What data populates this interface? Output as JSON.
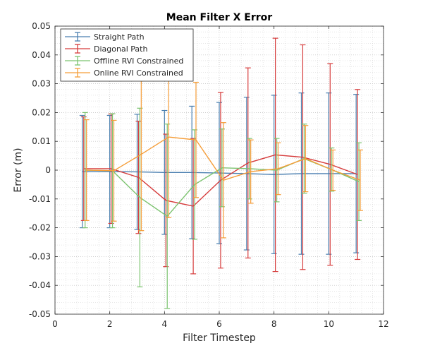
{
  "chart_data": {
    "type": "line",
    "title": "Mean Filter X Error",
    "xlabel": "Filter Timestep",
    "ylabel": "Error (m)",
    "xlim": [
      0,
      12
    ],
    "ylim": [
      -0.05,
      0.05
    ],
    "xticks": [
      0,
      2,
      4,
      6,
      8,
      10,
      12
    ],
    "xtick_labels": [
      "0",
      "2",
      "4",
      "6",
      "8",
      "10",
      "12"
    ],
    "yticks": [
      -0.05,
      -0.04,
      -0.03,
      -0.02,
      -0.01,
      0,
      0.01,
      0.02,
      0.03,
      0.04,
      0.05
    ],
    "ytick_labels": [
      "-0.05",
      "-0.04",
      "-0.03",
      "-0.02",
      "-0.01",
      "0",
      "0.01",
      "0.02",
      "0.03",
      "0.04",
      "0.05"
    ],
    "grid": "major and minor, dotted",
    "legend_position": "top-left",
    "series": [
      {
        "name": "Straight Path",
        "color": "#4a7fb0",
        "x": [
          1,
          2,
          3,
          4,
          5,
          6,
          7,
          8,
          9,
          10,
          11
        ],
        "y": [
          -0.0005,
          -0.0005,
          -0.0006,
          -0.0008,
          -0.0008,
          -0.001,
          -0.0012,
          -0.0015,
          -0.0012,
          -0.0012,
          -0.0012
        ],
        "err": [
          0.0195,
          0.0195,
          0.02,
          0.0215,
          0.023,
          0.0245,
          0.0265,
          0.0275,
          0.028,
          0.028,
          0.0275
        ]
      },
      {
        "name": "Diagonal Path",
        "color": "#d63c3c",
        "x": [
          1.05,
          2.05,
          3.05,
          4.05,
          5.05,
          6.05,
          7.05,
          8.05,
          9.05,
          10.05,
          11.05
        ],
        "y": [
          0.0005,
          0.0005,
          -0.0025,
          -0.0105,
          -0.0125,
          -0.0035,
          0.0025,
          0.0053,
          0.0045,
          0.002,
          -0.0015
        ],
        "err": [
          0.018,
          0.019,
          0.0195,
          0.023,
          0.0235,
          0.0305,
          0.033,
          0.0405,
          0.039,
          0.035,
          0.0295
        ]
      },
      {
        "name": "Offline RVI Constrained",
        "color": "#7cc36f",
        "x": [
          1.1,
          2.1,
          3.1,
          4.1,
          5.1,
          6.1,
          7.1,
          8.1,
          9.1,
          10.1,
          11.1
        ],
        "y": [
          0.0,
          -0.0002,
          -0.0095,
          -0.016,
          -0.005,
          0.0008,
          0.0005,
          0.0,
          0.004,
          0.0002,
          -0.004
        ],
        "err": [
          0.02,
          0.0198,
          0.031,
          0.032,
          0.019,
          0.0135,
          0.0105,
          0.011,
          0.012,
          0.0075,
          0.0135
        ]
      },
      {
        "name": "Online RVI Constrained",
        "color": "#f59d38",
        "x": [
          1.15,
          2.15,
          3.15,
          4.15,
          5.15,
          6.15,
          7.15,
          8.15,
          9.15,
          10.15,
          11.15
        ],
        "y": [
          0.0,
          -0.0002,
          0.0055,
          0.0115,
          0.0105,
          -0.0035,
          -0.0005,
          0.0005,
          0.004,
          0.0,
          -0.0035
        ],
        "err": [
          0.0175,
          0.0175,
          0.0265,
          0.028,
          0.02,
          0.02,
          0.011,
          0.009,
          0.0115,
          0.007,
          0.0105
        ]
      }
    ]
  }
}
